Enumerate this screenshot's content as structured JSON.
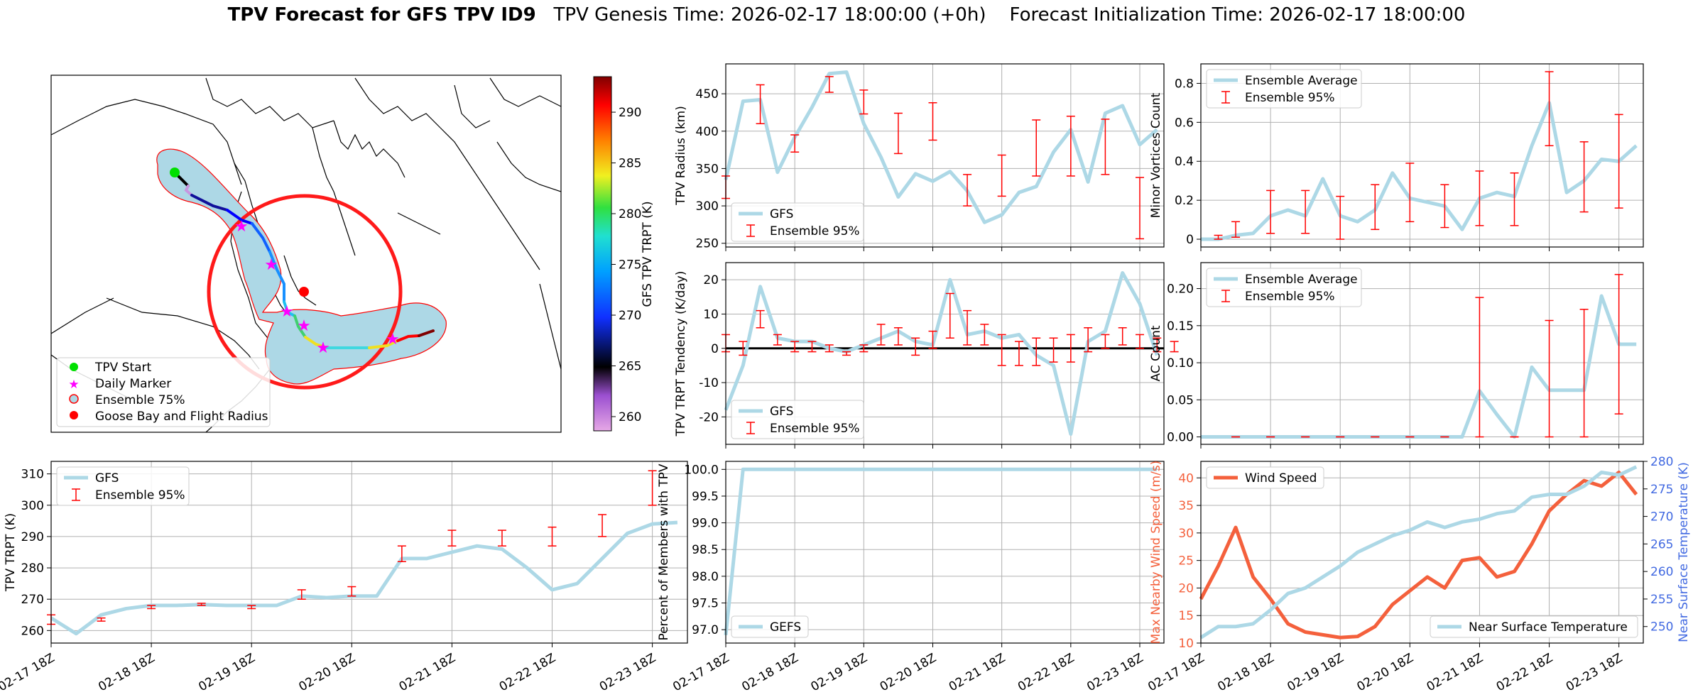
{
  "header": {
    "title_bold": "TPV Forecast for GFS TPV ID9",
    "genesis": "TPV Genesis Time: 2026-02-17 18:00:00 (+0h)",
    "init": "Forecast Initialization Time: 2026-02-17 18:00:00"
  },
  "colors": {
    "gfs": "#add8e6",
    "ens": "#ff0000",
    "wind": "#f4603c",
    "temp": "#4169e1",
    "path_fill": "#add8e6",
    "circle": "#ff1a1a"
  },
  "x_ticks": [
    "02-17 18Z",
    "02-18 18Z",
    "02-19 18Z",
    "02-20 18Z",
    "02-21 18Z",
    "02-22 18Z",
    "02-23 18Z"
  ],
  "map": {
    "colorbar_label": "GFS TPV TRPT (K)",
    "colorbar_ticks": [
      "260",
      "265",
      "270",
      "275",
      "280",
      "285",
      "290"
    ],
    "legend": [
      "TPV Start",
      "Daily Marker",
      "Ensemble 75%",
      "Goose Bay and Flight Radius"
    ]
  },
  "chart_data": [
    {
      "id": "radius",
      "type": "line",
      "ylabel": "TPV Radius (km)",
      "ylim": [
        245,
        490
      ],
      "yticks": [
        250,
        300,
        350,
        400,
        450
      ],
      "series": [
        {
          "name": "GFS",
          "values": [
            335,
            440,
            442,
            345,
            392,
            432,
            477,
            479,
            410,
            365,
            312,
            343,
            333,
            346,
            320,
            278,
            288,
            318,
            326,
            372,
            402,
            332,
            424,
            434,
            382,
            402
          ]
        }
      ],
      "ensemble": {
        "name": "Ensemble 95%",
        "points": [
          [
            0,
            310,
            340
          ],
          [
            2,
            410,
            462
          ],
          [
            4,
            372,
            395
          ],
          [
            6,
            452,
            473
          ],
          [
            8,
            423,
            455
          ],
          [
            10,
            370,
            424
          ],
          [
            12,
            388,
            438
          ],
          [
            14,
            300,
            342
          ],
          [
            16,
            313,
            368
          ],
          [
            18,
            340,
            415
          ],
          [
            20,
            340,
            420
          ],
          [
            22,
            342,
            416
          ],
          [
            24,
            256,
            338
          ]
        ]
      },
      "legend": [
        "GFS",
        "Ensemble 95%"
      ]
    },
    {
      "id": "tendency",
      "type": "line",
      "ylabel": "TPV TRPT Tendency (K/day)",
      "ylim": [
        -28,
        25
      ],
      "yticks": [
        -20,
        -10,
        0,
        10,
        20
      ],
      "series": [
        {
          "name": "GFS",
          "values": [
            -18,
            -5,
            18,
            3,
            2,
            2,
            0,
            -1,
            1,
            3,
            5,
            2,
            1,
            20,
            4,
            5,
            3,
            4,
            -2,
            -5,
            -25,
            2,
            5,
            22,
            13,
            -2
          ]
        }
      ],
      "ensemble": {
        "name": "Ensemble 95%",
        "points": [
          [
            0,
            -1,
            4
          ],
          [
            1,
            -2,
            2
          ],
          [
            2,
            6,
            11
          ],
          [
            3,
            1,
            4
          ],
          [
            4,
            -1,
            2
          ],
          [
            5,
            -1,
            2
          ],
          [
            6,
            -1,
            1
          ],
          [
            7,
            -2,
            -1
          ],
          [
            8,
            -1,
            1
          ],
          [
            9,
            1,
            7
          ],
          [
            10,
            1,
            6
          ],
          [
            11,
            -2,
            3
          ],
          [
            12,
            0,
            5
          ],
          [
            13,
            3,
            16
          ],
          [
            14,
            1,
            11
          ],
          [
            15,
            1,
            7
          ],
          [
            16,
            -5,
            4
          ],
          [
            17,
            -5,
            2
          ],
          [
            18,
            -5,
            3
          ],
          [
            19,
            -4,
            3
          ],
          [
            20,
            -4,
            4
          ],
          [
            21,
            -1,
            6
          ],
          [
            22,
            0,
            4
          ],
          [
            23,
            1,
            6
          ],
          [
            24,
            0,
            4
          ],
          [
            25,
            -1,
            3
          ],
          [
            26,
            -1,
            2
          ]
        ]
      },
      "legend": [
        "GFS",
        "Ensemble 95%"
      ]
    },
    {
      "id": "minor",
      "type": "line",
      "ylabel": "Minor Vortices Count",
      "ylim": [
        -0.04,
        0.9
      ],
      "yticks": [
        0.0,
        0.2,
        0.4,
        0.6,
        0.8
      ],
      "series": [
        {
          "name": "Ensemble Average",
          "values": [
            0,
            0,
            0.02,
            0.03,
            0.12,
            0.15,
            0.12,
            0.31,
            0.12,
            0.09,
            0.15,
            0.34,
            0.21,
            0.19,
            0.17,
            0.05,
            0.21,
            0.24,
            0.22,
            0.48,
            0.7,
            0.24,
            0.3,
            0.41,
            0.4,
            0.48
          ]
        }
      ],
      "ensemble": {
        "name": "Ensemble 95%",
        "points": [
          [
            1,
            0,
            0.02
          ],
          [
            2,
            0.01,
            0.09
          ],
          [
            4,
            0.03,
            0.25
          ],
          [
            6,
            0.03,
            0.25
          ],
          [
            8,
            0.0,
            0.22
          ],
          [
            10,
            0.05,
            0.28
          ],
          [
            12,
            0.09,
            0.39
          ],
          [
            14,
            0.06,
            0.28
          ],
          [
            16,
            0.07,
            0.35
          ],
          [
            18,
            0.07,
            0.34
          ],
          [
            20,
            0.48,
            0.86
          ],
          [
            22,
            0.14,
            0.5
          ],
          [
            24,
            0.16,
            0.64
          ]
        ]
      },
      "legend": [
        "Ensemble Average",
        "Ensemble 95%"
      ]
    },
    {
      "id": "ac",
      "type": "line",
      "ylabel": "AC Count",
      "ylim": [
        -0.01,
        0.235
      ],
      "yticks": [
        0.0,
        0.05,
        0.1,
        0.15,
        0.2
      ],
      "yticklabels": [
        "0.00",
        "0.05",
        "0.10",
        "0.15",
        "0.20"
      ],
      "series": [
        {
          "name": "Ensemble Average",
          "values": [
            0,
            0,
            0,
            0,
            0,
            0,
            0,
            0,
            0,
            0,
            0,
            0,
            0,
            0,
            0,
            0,
            0.062,
            0.03,
            0,
            0.094,
            0.063,
            0.063,
            0.063,
            0.19,
            0.125,
            0.125
          ]
        }
      ],
      "ensemble": {
        "name": "Ensemble 95%",
        "points": [
          [
            2,
            0,
            0
          ],
          [
            4,
            0,
            0
          ],
          [
            6,
            0,
            0
          ],
          [
            8,
            0,
            0
          ],
          [
            10,
            0,
            0
          ],
          [
            12,
            0,
            0
          ],
          [
            14,
            0,
            0
          ],
          [
            16,
            0,
            0.188
          ],
          [
            18,
            0,
            0
          ],
          [
            20,
            0,
            0.157
          ],
          [
            22,
            0,
            0.172
          ],
          [
            24,
            0.031,
            0.219
          ]
        ]
      },
      "legend": [
        "Ensemble Average",
        "Ensemble 95%"
      ]
    },
    {
      "id": "trpt",
      "type": "line",
      "ylabel": "TPV TRPT (K)",
      "ylim": [
        256,
        314
      ],
      "yticks": [
        260,
        270,
        280,
        290,
        300,
        310
      ],
      "series": [
        {
          "name": "GFS",
          "values": [
            264,
            259,
            265,
            267,
            268,
            268,
            268.3,
            268,
            268,
            268,
            271,
            270.5,
            271,
            271,
            283,
            283,
            285,
            287,
            286,
            280,
            273,
            275,
            283,
            291,
            294,
            294.5
          ]
        }
      ],
      "ensemble": {
        "name": "Ensemble 95%",
        "points": [
          [
            0,
            262,
            265
          ],
          [
            2,
            263,
            264
          ],
          [
            4,
            267,
            268
          ],
          [
            6,
            268,
            268.7
          ],
          [
            8,
            267,
            268
          ],
          [
            10,
            270,
            273
          ],
          [
            12,
            271,
            274
          ],
          [
            14,
            282,
            287
          ],
          [
            16,
            287,
            292
          ],
          [
            18,
            287,
            292
          ],
          [
            20,
            287,
            293
          ],
          [
            22,
            290,
            297
          ],
          [
            24,
            300,
            311
          ]
        ]
      },
      "legend": [
        "GFS",
        "Ensemble 95%"
      ]
    },
    {
      "id": "percent",
      "type": "line",
      "ylabel": "Percent of Members with TPV",
      "ylim": [
        96.75,
        100.15
      ],
      "yticks": [
        97.0,
        97.5,
        98.0,
        98.5,
        99.0,
        99.5,
        100.0
      ],
      "yticklabels": [
        "97.0",
        "97.5",
        "98.0",
        "98.5",
        "99.0",
        "99.5",
        "100.0"
      ],
      "series": [
        {
          "name": "GEFS",
          "values": [
            96.9,
            100,
            100,
            100,
            100,
            100,
            100,
            100,
            100,
            100,
            100,
            100,
            100,
            100,
            100,
            100,
            100,
            100,
            100,
            100,
            100,
            100,
            100,
            100,
            100,
            100
          ]
        }
      ],
      "legend": [
        "GEFS"
      ]
    },
    {
      "id": "wind",
      "type": "line",
      "ylabel": "Max Nearby Wind Speed (m/s)",
      "ylim": [
        10,
        43
      ],
      "yticks": [
        10,
        15,
        20,
        25,
        30,
        35,
        40
      ],
      "y2label": "Near Surface Temperature (K)",
      "y2lim": [
        247,
        280
      ],
      "y2ticks": [
        250,
        255,
        260,
        265,
        270,
        275,
        280
      ],
      "series": [
        {
          "name": "Wind Speed",
          "axis": "left",
          "values": [
            18,
            24,
            31,
            22,
            18,
            13.5,
            12,
            11.5,
            11,
            11.2,
            13,
            17,
            19.5,
            22,
            20,
            25,
            25.5,
            22,
            23,
            28,
            34,
            37,
            39.5,
            38.5,
            41,
            37
          ]
        },
        {
          "name": "Near Surface Temperature",
          "axis": "right",
          "values": [
            248,
            250,
            250,
            250.5,
            253,
            256,
            257,
            259,
            261,
            263.5,
            265,
            266.5,
            267.5,
            269,
            268,
            269,
            269.5,
            270.5,
            271,
            273.5,
            274,
            274,
            275.5,
            278,
            277.5,
            279
          ]
        }
      ],
      "legend": [
        "Wind Speed",
        "Near Surface Temperature"
      ]
    }
  ]
}
